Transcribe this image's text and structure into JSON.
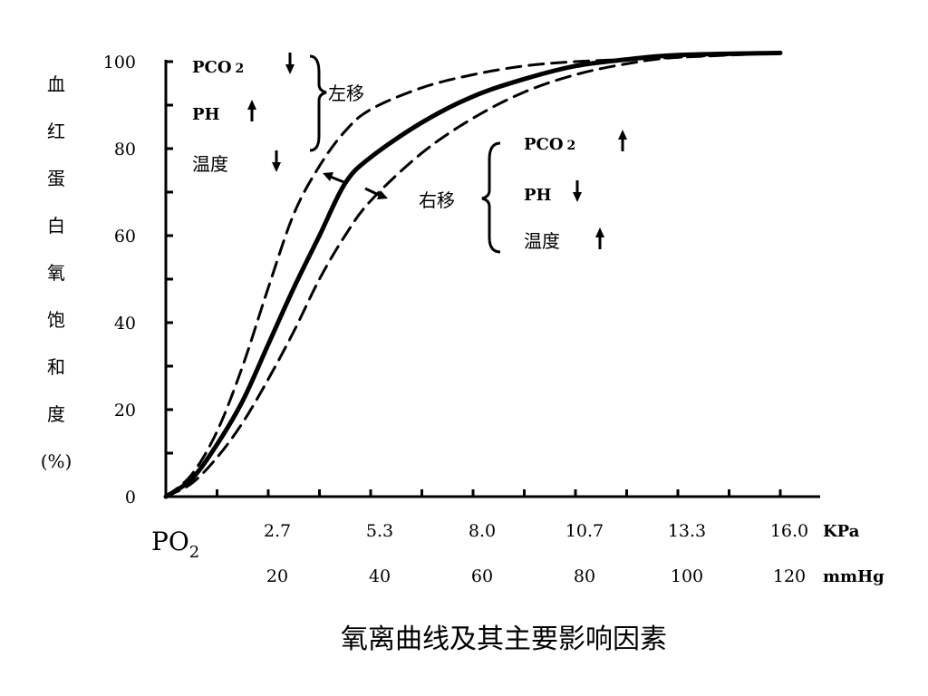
{
  "chart_data": {
    "type": "line",
    "title": "氧离曲线及其主要影响因素",
    "ylabel_chars": [
      "血",
      "红",
      "蛋",
      "白",
      "氧",
      "饱",
      "和",
      "度",
      "(%)"
    ],
    "ylim": [
      0,
      100
    ],
    "xlim": [
      0,
      128
    ],
    "y_ticks": [
      "0",
      "20",
      "40",
      "60",
      "80",
      "100"
    ],
    "x_axis_title": "PO2",
    "x_axis_title_main": "PO",
    "x_axis_title_sub": "2",
    "x_ticks_kpa": [
      {
        "x": 20,
        "label": "2.7"
      },
      {
        "x": 40,
        "label": "5.3"
      },
      {
        "x": 60,
        "label": "8.0"
      },
      {
        "x": 80,
        "label": "10.7"
      },
      {
        "x": 100,
        "label": "13.3"
      },
      {
        "x": 120,
        "label": "16.0"
      }
    ],
    "x_ticks_mmhg": [
      {
        "x": 20,
        "label": "20"
      },
      {
        "x": 40,
        "label": "40"
      },
      {
        "x": 60,
        "label": "60"
      },
      {
        "x": 80,
        "label": "80"
      },
      {
        "x": 100,
        "label": "100"
      },
      {
        "x": 120,
        "label": "120"
      }
    ],
    "unit_kpa": "KPa",
    "unit_mmhg": "mmHg",
    "series": [
      {
        "style": "dashed",
        "values": [
          [
            0,
            0
          ],
          [
            5,
            5
          ],
          [
            10,
            15
          ],
          [
            15,
            30
          ],
          [
            20,
            48
          ],
          [
            25,
            65
          ],
          [
            30,
            76
          ],
          [
            35,
            84
          ],
          [
            40,
            89
          ],
          [
            50,
            94
          ],
          [
            60,
            97
          ],
          [
            70,
            99
          ],
          [
            80,
            100
          ],
          [
            90,
            100.5
          ],
          [
            100,
            101
          ],
          [
            120,
            102
          ]
        ]
      },
      {
        "style": "solid",
        "values": [
          [
            0,
            0
          ],
          [
            5,
            4
          ],
          [
            10,
            12
          ],
          [
            15,
            22
          ],
          [
            20,
            35
          ],
          [
            25,
            48
          ],
          [
            30,
            60
          ],
          [
            35,
            72
          ],
          [
            40,
            78
          ],
          [
            50,
            86
          ],
          [
            60,
            92
          ],
          [
            70,
            96
          ],
          [
            80,
            99
          ],
          [
            90,
            100.5
          ],
          [
            100,
            101.5
          ],
          [
            120,
            102
          ]
        ]
      },
      {
        "style": "dashed",
        "values": [
          [
            0,
            0
          ],
          [
            5,
            3
          ],
          [
            10,
            9
          ],
          [
            15,
            17
          ],
          [
            20,
            27
          ],
          [
            25,
            38
          ],
          [
            30,
            50
          ],
          [
            35,
            60
          ],
          [
            40,
            68
          ],
          [
            50,
            79
          ],
          [
            60,
            87
          ],
          [
            70,
            93
          ],
          [
            80,
            97
          ],
          [
            90,
            99.5
          ],
          [
            100,
            101
          ],
          [
            120,
            102
          ]
        ]
      }
    ],
    "left_shift": {
      "label": "左移",
      "factors": [
        {
          "name_main": "PCO",
          "name_sub": "2",
          "arrow": "down"
        },
        {
          "name_main": "PH",
          "name_sub": "",
          "arrow": "up"
        },
        {
          "name_main": "温度",
          "name_sub": "",
          "arrow": "down"
        }
      ]
    },
    "right_shift": {
      "label": "右移",
      "factors": [
        {
          "name_main": "PCO",
          "name_sub": "2",
          "arrow": "up"
        },
        {
          "name_main": "PH",
          "name_sub": "",
          "arrow": "down"
        },
        {
          "name_main": "温度",
          "name_sub": "",
          "arrow": "up"
        }
      ]
    }
  }
}
